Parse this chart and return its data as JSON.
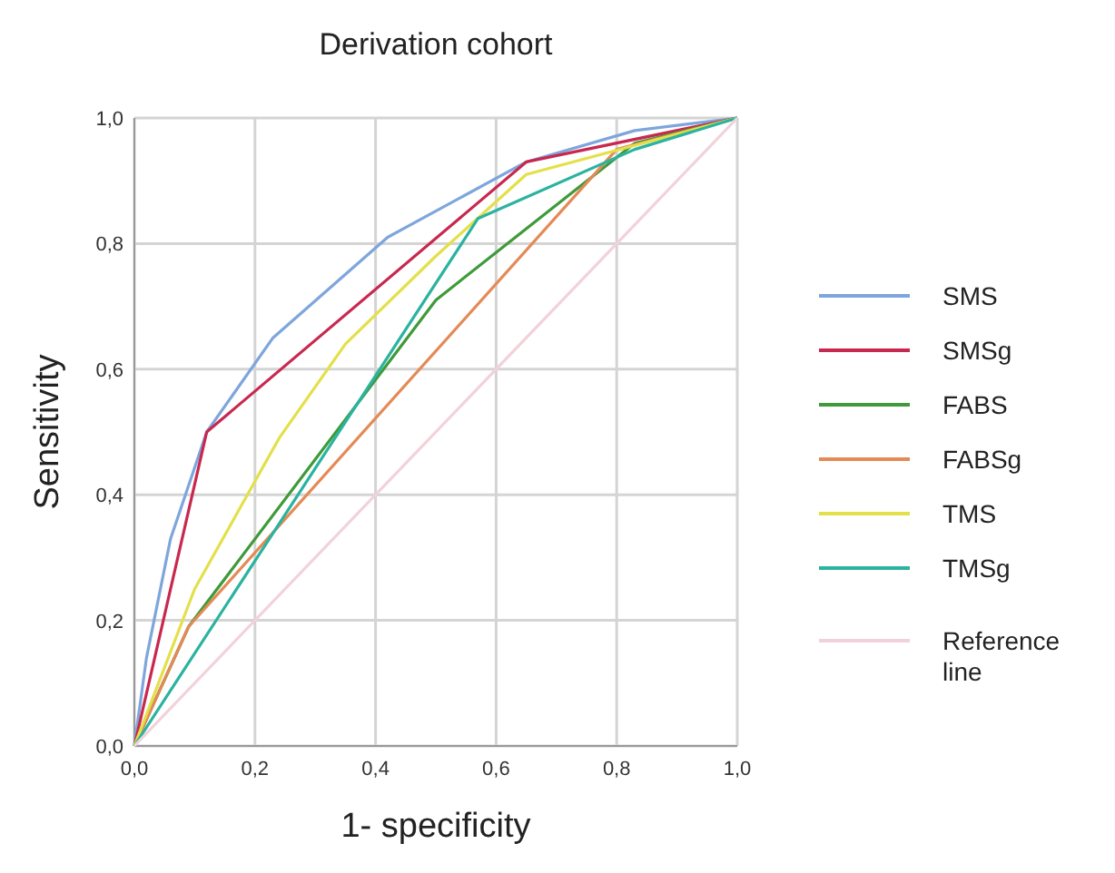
{
  "chart_data": {
    "type": "line",
    "title": "Derivation cohort",
    "xlabel": "1- specificity",
    "ylabel": "Sensitivity",
    "xlim": [
      0,
      1
    ],
    "ylim": [
      0,
      1
    ],
    "xticks": [
      {
        "value": 0,
        "label": "0,0"
      },
      {
        "value": 0.2,
        "label": "0,2"
      },
      {
        "value": 0.4,
        "label": "0,4"
      },
      {
        "value": 0.6,
        "label": "0,6"
      },
      {
        "value": 0.8,
        "label": "0,8"
      },
      {
        "value": 1,
        "label": "1,0"
      }
    ],
    "yticks": [
      {
        "value": 0,
        "label": "0,0"
      },
      {
        "value": 0.2,
        "label": "0,2"
      },
      {
        "value": 0.4,
        "label": "0,4"
      },
      {
        "value": 0.6,
        "label": "0,6"
      },
      {
        "value": 0.8,
        "label": "0,8"
      },
      {
        "value": 1,
        "label": "1,0"
      }
    ],
    "grid": true,
    "legend": "right",
    "marker": "none",
    "series": [
      {
        "name": "SMS",
        "color": "#7ea6dc",
        "x": [
          0,
          0.02,
          0.06,
          0.12,
          0.23,
          0.42,
          0.65,
          0.83,
          1
        ],
        "values": [
          0,
          0.14,
          0.33,
          0.5,
          0.65,
          0.81,
          0.93,
          0.98,
          1
        ]
      },
      {
        "name": "SMSg",
        "color": "#c8284f",
        "x": [
          0,
          0.12,
          0.65,
          1
        ],
        "values": [
          0,
          0.5,
          0.93,
          1
        ]
      },
      {
        "name": "FABS",
        "color": "#3f9a3a",
        "x": [
          0,
          0.09,
          0.5,
          0.83,
          1
        ],
        "values": [
          0,
          0.19,
          0.71,
          0.96,
          1
        ]
      },
      {
        "name": "FABSg",
        "color": "#e48a56",
        "x": [
          0,
          0.09,
          0.8,
          1
        ],
        "values": [
          0,
          0.19,
          0.95,
          1
        ]
      },
      {
        "name": "TMS",
        "color": "#e3e04a",
        "x": [
          0,
          0.1,
          0.24,
          0.35,
          0.5,
          0.65,
          1
        ],
        "values": [
          0,
          0.25,
          0.49,
          0.64,
          0.78,
          0.91,
          1
        ]
      },
      {
        "name": "TMSg",
        "color": "#2bb3a0",
        "x": [
          0,
          0.57,
          0.83,
          1
        ],
        "values": [
          0,
          0.84,
          0.95,
          1
        ]
      },
      {
        "name": "Reference line",
        "color": "#f2d2da",
        "x": [
          0,
          1
        ],
        "values": [
          0,
          1
        ]
      }
    ]
  }
}
